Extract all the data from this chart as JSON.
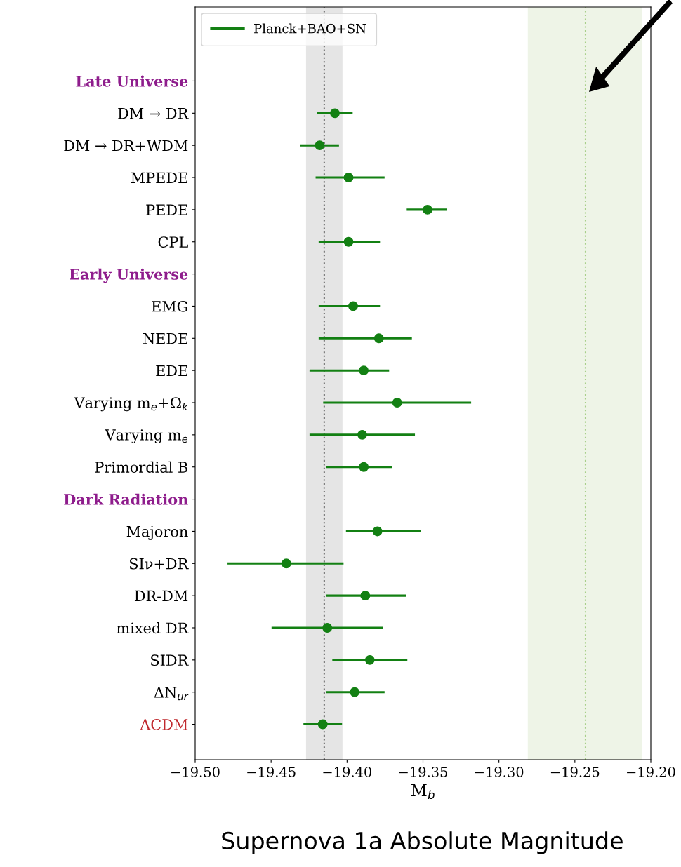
{
  "chart_data": {
    "type": "scatter",
    "orientation": "horizontal",
    "xlabel": "M$_{b}$",
    "categories": [
      "Late Universe",
      "DM → DR",
      "DM → DR+WDM",
      "MPEDE",
      "PEDE",
      "CPL",
      "Early Universe",
      "EMG",
      "NEDE",
      "EDE",
      "Varying m$_{e}$+Ω$_{k}$",
      "Varying m$_{e}$",
      "Primordial B",
      "Dark Radiation",
      "Majoron",
      "SIν+DR",
      "DR-DM",
      "mixed DR",
      "SIDR",
      "ΔN$_{ur}$",
      "ΛCDM"
    ],
    "series": [
      {
        "name": "Planck+BAO+SN",
        "color": "#138013",
        "values": [
          null,
          -19.408,
          -19.418,
          -19.399,
          -19.347,
          -19.399,
          null,
          -19.396,
          -19.379,
          -19.389,
          -19.367,
          -19.39,
          -19.389,
          null,
          -19.38,
          -19.44,
          -19.388,
          -19.413,
          -19.385,
          -19.395,
          -19.416
        ],
        "errors": [
          null,
          [
            -19.419,
            -19.397
          ],
          [
            -19.43,
            -19.406
          ],
          [
            -19.42,
            -19.376
          ],
          [
            -19.36,
            -19.335
          ],
          [
            -19.418,
            -19.379
          ],
          null,
          [
            -19.418,
            -19.379
          ],
          [
            -19.418,
            -19.358
          ],
          [
            -19.424,
            -19.373
          ],
          [
            -19.415,
            -19.319
          ],
          [
            -19.424,
            -19.356
          ],
          [
            -19.413,
            -19.371
          ],
          null,
          [
            -19.4,
            -19.352
          ],
          [
            -19.478,
            -19.403
          ],
          [
            -19.413,
            -19.362
          ],
          [
            -19.449,
            -19.377
          ],
          [
            -19.409,
            -19.361
          ],
          [
            -19.413,
            -19.376
          ],
          [
            -19.428,
            -19.404
          ]
        ]
      }
    ],
    "xlim": [
      -19.5,
      -19.2
    ],
    "xticks": [
      {
        "value": -19.5,
        "label": "−19.50"
      },
      {
        "value": -19.45,
        "label": "−19.45"
      },
      {
        "value": -19.4,
        "label": "−19.40"
      },
      {
        "value": -19.35,
        "label": "−19.35"
      },
      {
        "value": -19.3,
        "label": "−19.30"
      },
      {
        "value": -19.25,
        "label": "−19.25"
      },
      {
        "value": -19.2,
        "label": "−19.20"
      }
    ],
    "bands": [
      {
        "axis": "x",
        "from": -19.427,
        "to": -19.403,
        "color": "#e5e5e5"
      },
      {
        "axis": "x",
        "from": -19.281,
        "to": -19.206,
        "color": "#eef4e7"
      }
    ],
    "ref_lines": [
      {
        "axis": "x",
        "value": -19.415,
        "color": "#777777",
        "line_style": "dotted"
      },
      {
        "axis": "x",
        "value": -19.243,
        "color": "#a8cf8a",
        "line_style": "dotted"
      }
    ],
    "marker": "circle",
    "legend": "top left",
    "grid": false,
    "annotations": [
      "Supernova 1a Absolute Magnitude"
    ]
  }
}
